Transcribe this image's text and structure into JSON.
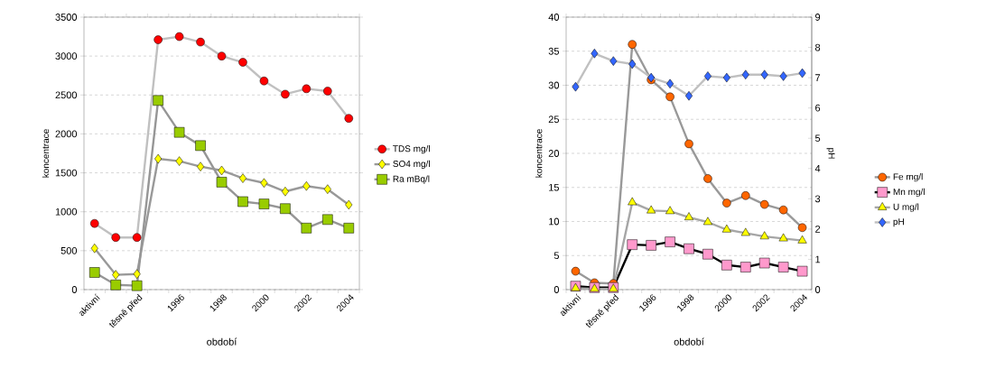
{
  "chart_data": [
    {
      "type": "line",
      "xlabel": "období",
      "ylabel": "koncentrace",
      "categories": [
        "aktivní",
        null,
        "těsně před",
        null,
        "1996",
        null,
        "1998",
        null,
        "2000",
        null,
        "2002",
        null,
        "2004"
      ],
      "ylim": [
        0,
        3500
      ],
      "yticks": [
        0,
        500,
        1000,
        1500,
        2000,
        2500,
        3000,
        3500
      ],
      "grid": "y",
      "legend": "right",
      "line_style": "solid",
      "series": [
        {
          "name": "TDS mg/l",
          "color": "#ff0000",
          "marker": "circle",
          "values": [
            850,
            670,
            670,
            3210,
            3250,
            3180,
            3000,
            2920,
            2680,
            2510,
            2580,
            2550,
            2200
          ]
        },
        {
          "name": "SO4 mg/l",
          "color": "#ffff00",
          "marker": "diamond",
          "values": [
            530,
            190,
            200,
            1680,
            1650,
            1580,
            1530,
            1430,
            1370,
            1260,
            1330,
            1290,
            1090
          ]
        },
        {
          "name": "Ra mBq/l",
          "color": "#99cc00",
          "marker": "square",
          "values": [
            220,
            60,
            50,
            2430,
            2020,
            1850,
            1380,
            1130,
            1100,
            1040,
            790,
            900,
            790
          ]
        }
      ]
    },
    {
      "type": "line",
      "xlabel": "období",
      "ylabel": "koncentrace",
      "y2label": "pH",
      "categories": [
        "aktivní",
        null,
        "těsně před",
        null,
        "1996",
        null,
        "1998",
        null,
        "2000",
        null,
        "2002",
        null,
        "2004"
      ],
      "ylim": [
        0,
        40
      ],
      "yticks": [
        0,
        5,
        10,
        15,
        20,
        25,
        30,
        35,
        40
      ],
      "y2lim": [
        0,
        9
      ],
      "y2ticks": [
        0,
        1,
        2,
        3,
        4,
        5,
        6,
        7,
        8,
        9
      ],
      "grid": "y",
      "legend": "right",
      "line_style": "solid",
      "series": [
        {
          "name": "Fe mg/l",
          "color": "#ff6600",
          "marker": "circle",
          "values": [
            2.7,
            1.0,
            0.9,
            36.0,
            30.8,
            28.3,
            21.4,
            16.3,
            12.7,
            13.8,
            12.5,
            11.7,
            9.1
          ]
        },
        {
          "name": "Mn mg/l",
          "color": "#ff99cc",
          "marker": "square",
          "values": [
            0.5,
            0.3,
            0.3,
            6.6,
            6.5,
            7.0,
            6.0,
            5.2,
            3.6,
            3.3,
            3.9,
            3.3,
            2.7
          ]
        },
        {
          "name": "U mg/l",
          "color": "#ffff00",
          "marker": "triangle",
          "values": [
            0.2,
            0.1,
            0.1,
            12.8,
            11.6,
            11.5,
            10.6,
            9.9,
            8.8,
            8.3,
            7.8,
            7.5,
            7.2
          ]
        },
        {
          "name": "pH",
          "color": "#3366ff",
          "marker": "diamond",
          "axis": "y2",
          "values": [
            6.7,
            7.8,
            7.55,
            7.45,
            7.0,
            6.8,
            6.4,
            7.05,
            7.0,
            7.1,
            7.1,
            7.05,
            7.15
          ]
        }
      ]
    }
  ]
}
